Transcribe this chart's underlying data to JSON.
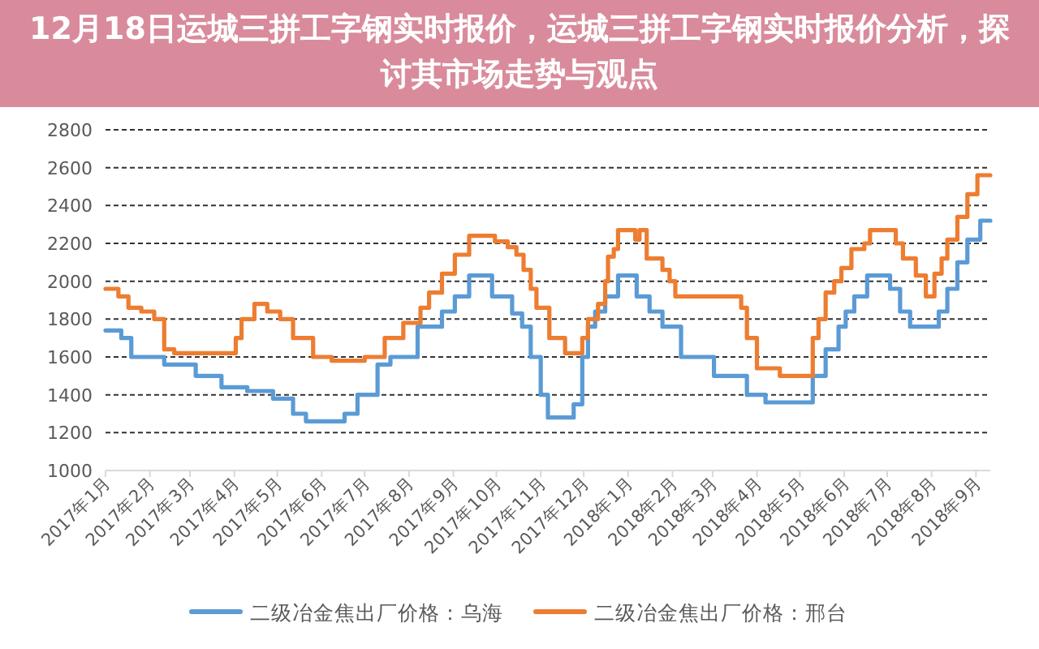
{
  "chart_data": {
    "type": "step",
    "title": "12月18日运城三拼工字钢实时报价，运城三拼工字钢实时报价分析，探讨其市场走势与观点",
    "xlim": [
      "2017-01-01",
      "2018-09-11"
    ],
    "xticks": [
      {
        "value": "2017-01-01",
        "label": "2017年1月"
      },
      {
        "value": "2017-02-01",
        "label": "2017年2月"
      },
      {
        "value": "2017-03-01",
        "label": "2017年3月"
      },
      {
        "value": "2017-04-01",
        "label": "2017年4月"
      },
      {
        "value": "2017-05-01",
        "label": "2017年5月"
      },
      {
        "value": "2017-06-01",
        "label": "2017年6月"
      },
      {
        "value": "2017-07-01",
        "label": "2017年7月"
      },
      {
        "value": "2017-08-01",
        "label": "2017年8月"
      },
      {
        "value": "2017-09-01",
        "label": "2017年9月"
      },
      {
        "value": "2017-10-01",
        "label": "2017年10月"
      },
      {
        "value": "2017-11-01",
        "label": "2017年11月"
      },
      {
        "value": "2017-12-01",
        "label": "2017年12月"
      },
      {
        "value": "2018-01-01",
        "label": "2018年1月"
      },
      {
        "value": "2018-02-01",
        "label": "2018年2月"
      },
      {
        "value": "2018-03-01",
        "label": "2018年3月"
      },
      {
        "value": "2018-04-01",
        "label": "2018年4月"
      },
      {
        "value": "2018-05-01",
        "label": "2018年5月"
      },
      {
        "value": "2018-06-01",
        "label": "2018年6月"
      },
      {
        "value": "2018-07-01",
        "label": "2018年7月"
      },
      {
        "value": "2018-08-01",
        "label": "2018年8月"
      },
      {
        "value": "2018-09-01",
        "label": "2018年9月"
      }
    ],
    "ylim": [
      1000,
      2800
    ],
    "yticks": [
      1000,
      1200,
      1400,
      1600,
      1800,
      2000,
      2200,
      2400,
      2600,
      2800
    ],
    "grid": "y",
    "legend": "bottom",
    "series": [
      {
        "name": "二级冶金焦出厂价格：乌海",
        "color": "#5b9bd5",
        "x": [
          "2017-01-01",
          "2017-01-12",
          "2017-01-19",
          "2017-02-11",
          "2017-03-05",
          "2017-03-23",
          "2017-04-10",
          "2017-04-28",
          "2017-05-12",
          "2017-05-21",
          "2017-06-17",
          "2017-06-26",
          "2017-07-10",
          "2017-07-19",
          "2017-08-07",
          "2017-08-24",
          "2017-09-02",
          "2017-09-12",
          "2017-09-28",
          "2017-10-12",
          "2017-10-19",
          "2017-10-25",
          "2017-11-01",
          "2017-11-06",
          "2017-11-24",
          "2017-11-30",
          "2017-12-04",
          "2017-12-09",
          "2017-12-16",
          "2017-12-25",
          "2018-01-07",
          "2018-01-16",
          "2018-01-25",
          "2018-02-07",
          "2018-03-02",
          "2018-03-25",
          "2018-04-07",
          "2018-04-25",
          "2018-05-10",
          "2018-05-19",
          "2018-05-28",
          "2018-06-02",
          "2018-06-08",
          "2018-06-17",
          "2018-07-03",
          "2018-07-10",
          "2018-07-17",
          "2018-08-06",
          "2018-08-12",
          "2018-08-19",
          "2018-08-26",
          "2018-09-04",
          "2018-09-11"
        ],
        "values": [
          1740,
          1700,
          1600,
          1560,
          1500,
          1440,
          1420,
          1380,
          1300,
          1260,
          1300,
          1400,
          1560,
          1600,
          1760,
          1840,
          1920,
          2030,
          1920,
          1830,
          1760,
          1600,
          1400,
          1280,
          1350,
          1600,
          1760,
          1840,
          1920,
          2030,
          1920,
          1840,
          1760,
          1600,
          1500,
          1400,
          1360,
          1360,
          1500,
          1640,
          1760,
          1840,
          1920,
          2030,
          1960,
          1840,
          1760,
          1840,
          1960,
          2100,
          2220,
          2320,
          2320
        ]
      },
      {
        "name": "二级冶金焦出厂价格：邢台",
        "color": "#ed7d31",
        "x": [
          "2017-01-01",
          "2017-01-10",
          "2017-01-17",
          "2017-01-26",
          "2017-02-04",
          "2017-02-11",
          "2017-02-18",
          "2017-03-19",
          "2017-04-02",
          "2017-04-06",
          "2017-04-15",
          "2017-04-24",
          "2017-05-03",
          "2017-05-12",
          "2017-05-26",
          "2017-06-08",
          "2017-07-01",
          "2017-07-15",
          "2017-07-28",
          "2017-08-09",
          "2017-08-15",
          "2017-08-24",
          "2017-09-02",
          "2017-09-12",
          "2017-09-30",
          "2017-10-09",
          "2017-10-15",
          "2017-10-20",
          "2017-10-25",
          "2017-10-29",
          "2017-11-07",
          "2017-11-18",
          "2017-11-30",
          "2017-12-04",
          "2017-12-11",
          "2017-12-16",
          "2017-12-18",
          "2017-12-22",
          "2017-12-25",
          "2018-01-06",
          "2018-01-09",
          "2018-01-14",
          "2018-01-25",
          "2018-01-30",
          "2018-02-03",
          "2018-03-21",
          "2018-03-25",
          "2018-04-01",
          "2018-04-17",
          "2018-05-10",
          "2018-05-14",
          "2018-05-19",
          "2018-05-25",
          "2018-05-30",
          "2018-06-06",
          "2018-06-15",
          "2018-06-19",
          "2018-07-07",
          "2018-07-12",
          "2018-07-21",
          "2018-07-28",
          "2018-08-03",
          "2018-08-08",
          "2018-08-12",
          "2018-08-19",
          "2018-08-26",
          "2018-09-02",
          "2018-09-11"
        ],
        "values": [
          1960,
          1920,
          1860,
          1840,
          1800,
          1640,
          1620,
          1620,
          1700,
          1800,
          1880,
          1840,
          1800,
          1700,
          1600,
          1580,
          1600,
          1700,
          1780,
          1860,
          1940,
          2040,
          2140,
          2240,
          2210,
          2180,
          2140,
          2060,
          1960,
          1860,
          1700,
          1620,
          1700,
          1800,
          1880,
          2000,
          2130,
          2170,
          2270,
          2220,
          2270,
          2120,
          2060,
          2000,
          1920,
          1860,
          1700,
          1540,
          1500,
          1700,
          1800,
          1940,
          2000,
          2070,
          2170,
          2200,
          2270,
          2200,
          2120,
          2030,
          1920,
          2040,
          2120,
          2220,
          2340,
          2460,
          2560,
          2560
        ]
      }
    ]
  }
}
